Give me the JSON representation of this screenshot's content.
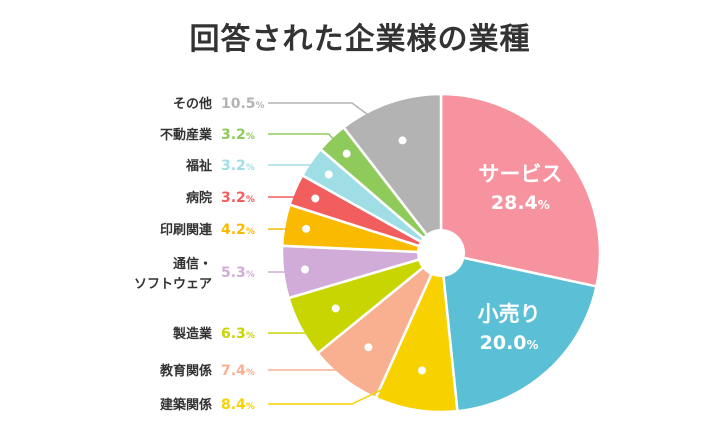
{
  "chart_data": {
    "type": "pie",
    "title": "回答された企業様の業種",
    "unit": "%",
    "slices": [
      {
        "label": "サービス",
        "value": 28.4,
        "color": "#F7939F",
        "inside": true
      },
      {
        "label": "小売り",
        "value": 20.0,
        "color": "#5BBFD6",
        "inside": true
      },
      {
        "label": "建築関係",
        "value": 8.4,
        "color": "#F8D200"
      },
      {
        "label": "教育関係",
        "value": 7.4,
        "color": "#F9B090"
      },
      {
        "label": "製造業",
        "value": 6.3,
        "color": "#C9D500"
      },
      {
        "label": "通信・ソフトウェア",
        "lines": [
          "通信・",
          "ソフトウェア"
        ],
        "value": 5.3,
        "color": "#D2ACD8"
      },
      {
        "label": "印刷関連",
        "value": 4.2,
        "color": "#F9BA00"
      },
      {
        "label": "病院",
        "value": 3.2,
        "color": "#F25E5E"
      },
      {
        "label": "福祉",
        "value": 3.2,
        "color": "#A0DEE6"
      },
      {
        "label": "不動産業",
        "value": 3.2,
        "color": "#8FCB5A"
      },
      {
        "label": "その他",
        "value": 10.5,
        "color": "#B3B3B3"
      }
    ]
  }
}
